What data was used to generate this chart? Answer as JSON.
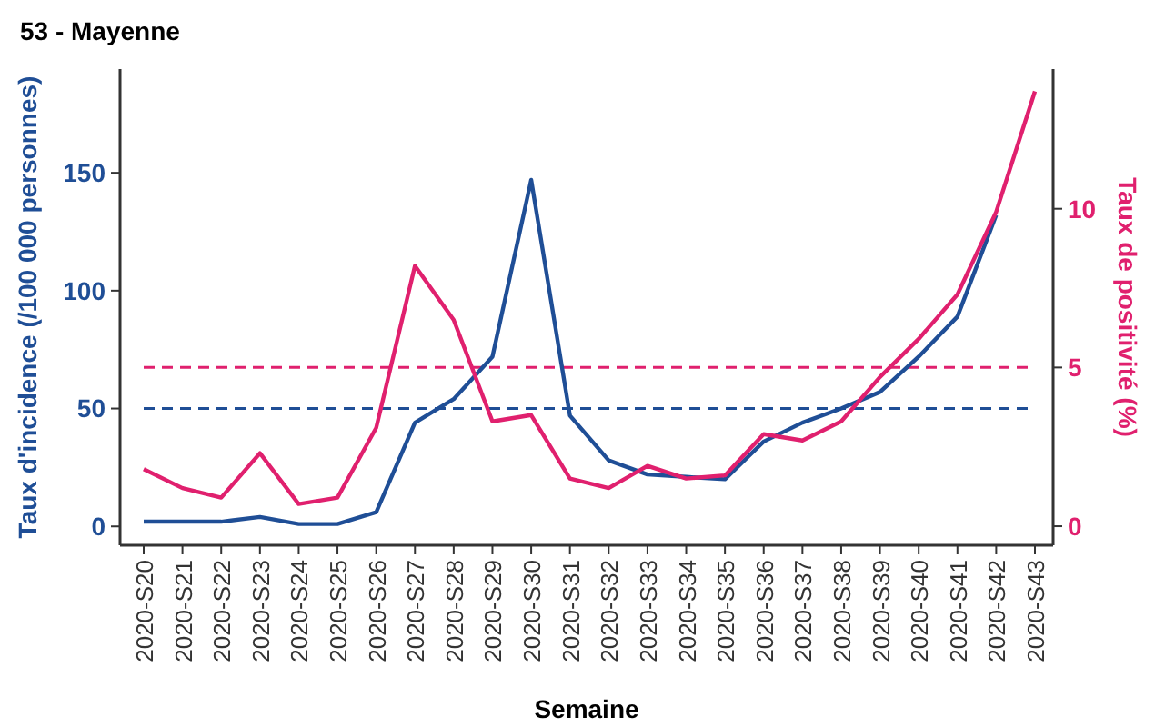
{
  "chart_data": {
    "type": "line",
    "title": "53 - Mayenne",
    "xlabel": "Semaine",
    "ylabel": "Taux d'incidence (/100 000 personnes)",
    "y2label": "Taux de positivité (%)",
    "categories": [
      "2020-S20",
      "2020-S21",
      "2020-S22",
      "2020-S23",
      "2020-S24",
      "2020-S25",
      "2020-S26",
      "2020-S27",
      "2020-S28",
      "2020-S29",
      "2020-S30",
      "2020-S31",
      "2020-S32",
      "2020-S33",
      "2020-S34",
      "2020-S35",
      "2020-S36",
      "2020-S37",
      "2020-S38",
      "2020-S39",
      "2020-S40",
      "2020-S41",
      "2020-S42",
      "2020-S43"
    ],
    "series": [
      {
        "color": "#1f4e96",
        "values": [
          2,
          2,
          2,
          4,
          1,
          1,
          6,
          44,
          54,
          72,
          147,
          47,
          28,
          22,
          21,
          20,
          36,
          44,
          50,
          57,
          72,
          89,
          132,
          null
        ]
      },
      {
        "color": "#e0206e",
        "axis": "y2",
        "values": [
          1.8,
          1.2,
          0.9,
          2.3,
          0.7,
          0.9,
          3.1,
          8.2,
          6.5,
          3.3,
          3.5,
          1.5,
          1.2,
          1.9,
          1.5,
          1.6,
          2.9,
          2.7,
          3.3,
          4.7,
          5.9,
          7.3,
          9.9,
          13.7
        ]
      }
    ],
    "ylim": [
      -8,
      194
    ],
    "yticks": [
      0,
      50,
      100,
      150
    ],
    "y2lim": [
      -0.6,
      14.4
    ],
    "y2ticks": [
      0,
      5,
      10
    ],
    "ref_lines": [
      {
        "axis": "y",
        "value": 50,
        "color": "#1f4e96",
        "line_style": "dashed"
      },
      {
        "axis": "y2",
        "value": 5,
        "color": "#e0206e",
        "line_style": "dashed"
      }
    ],
    "grid": false,
    "line_style": "solid",
    "marker": "none"
  }
}
